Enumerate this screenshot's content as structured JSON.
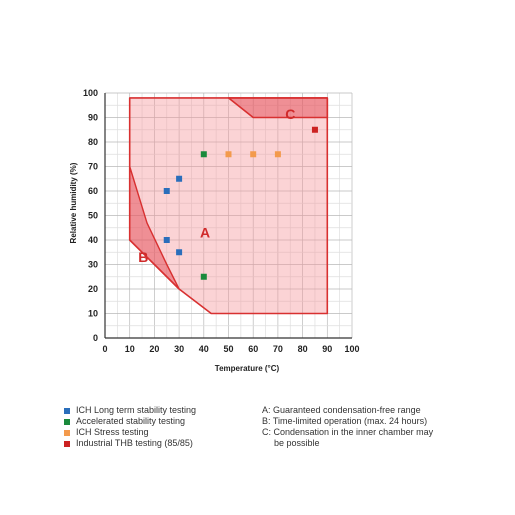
{
  "chart_data": {
    "type": "scatter",
    "xlabel": "Temperature (°C)",
    "ylabel": "Relative humidity (%)",
    "xlim": [
      0,
      100
    ],
    "ylim": [
      0,
      100
    ],
    "x_ticks": [
      0,
      10,
      20,
      30,
      40,
      50,
      60,
      70,
      80,
      90,
      100
    ],
    "y_ticks": [
      0,
      10,
      20,
      30,
      40,
      50,
      60,
      70,
      80,
      90,
      100
    ],
    "grid": true,
    "regions": [
      {
        "name": "A",
        "polygon": [
          [
            10,
            98
          ],
          [
            90,
            98
          ],
          [
            90,
            10
          ],
          [
            43,
            10
          ],
          [
            30,
            20
          ],
          [
            10,
            40
          ]
        ]
      },
      {
        "name": "B",
        "polygon": [
          [
            10,
            70
          ],
          [
            10,
            40
          ],
          [
            30,
            20
          ],
          [
            25,
            30
          ],
          [
            17,
            47
          ]
        ]
      },
      {
        "name": "C",
        "polygon": [
          [
            50,
            98
          ],
          [
            90,
            98
          ],
          [
            90,
            90
          ],
          [
            60,
            90
          ]
        ]
      }
    ],
    "region_labels": [
      {
        "text": "A",
        "x": 40.5,
        "y": 43
      },
      {
        "text": "B",
        "x": 15.5,
        "y": 33
      },
      {
        "text": "C",
        "x": 75,
        "y": 91.5
      }
    ],
    "series": [
      {
        "name": "ICH Long term stability testing",
        "color": "#2a6ebb",
        "points": [
          [
            25,
            60
          ],
          [
            30,
            65
          ],
          [
            25,
            40
          ],
          [
            30,
            35
          ]
        ]
      },
      {
        "name": "Accelerated stability testing",
        "color": "#1a8a3c",
        "points": [
          [
            40,
            75
          ],
          [
            40,
            25
          ]
        ]
      },
      {
        "name": "ICH Stress testing",
        "color": "#f39a4c",
        "points": [
          [
            50,
            75
          ],
          [
            60,
            75
          ],
          [
            70,
            75
          ]
        ]
      },
      {
        "name": "Industrial THB testing (85/85)",
        "color": "#cc2222",
        "points": [
          [
            85,
            85
          ]
        ]
      }
    ],
    "notes": [
      {
        "line1": "A: Guaranteed condensation-free range",
        "line2": ""
      },
      {
        "line1": "B: Time-limited operation (max. 24 hours)",
        "line2": ""
      },
      {
        "line1": "C: Condensation in the inner chamber may",
        "line2": "be possible"
      }
    ]
  }
}
